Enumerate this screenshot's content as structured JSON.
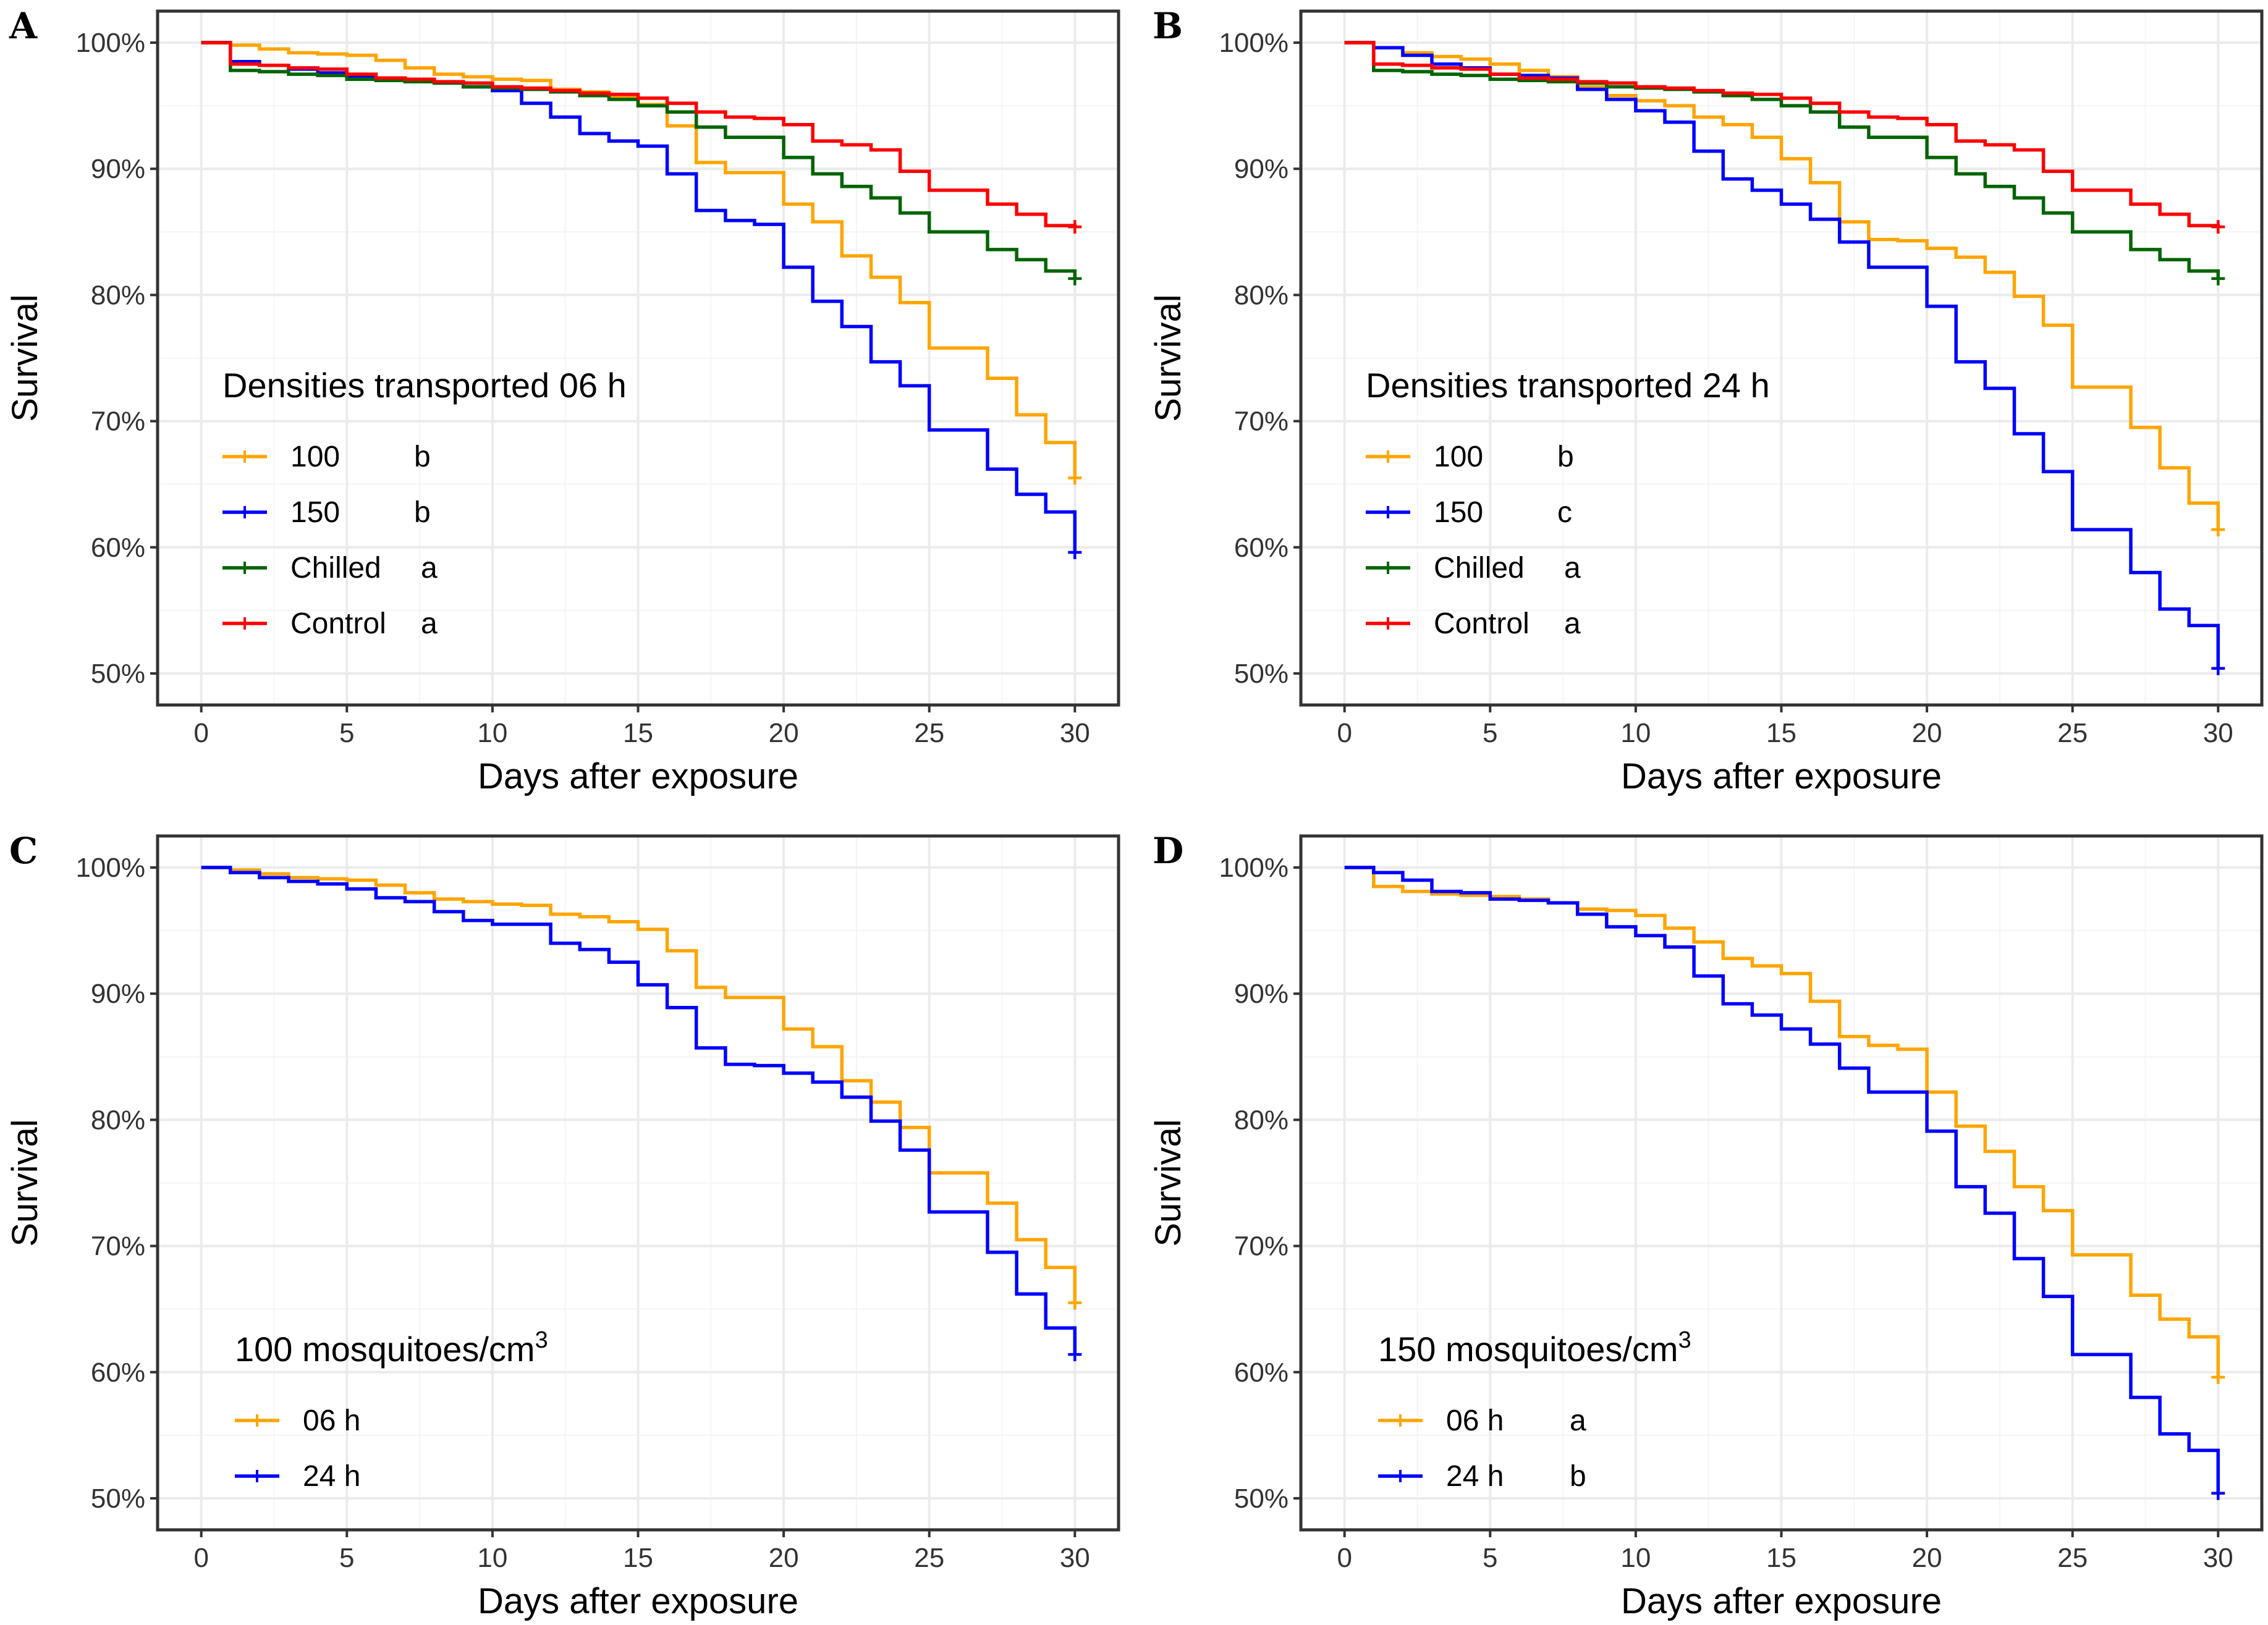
{
  "figure": {
    "colors": {
      "orange": "#FFA500",
      "blue": "#0000FF",
      "green": "#006400",
      "red": "#FF0000",
      "grid_major": "#EBEBEB",
      "grid_minor": "#F4F4F4",
      "frame": "#333333"
    }
  },
  "chart_data": [
    {
      "panel": "A",
      "type": "line",
      "step": true,
      "xlabel": "Days after exposure",
      "ylabel": "Survival",
      "xlim": [
        0,
        30
      ],
      "ylim": [
        50,
        100
      ],
      "xticks": [
        0,
        5,
        10,
        15,
        20,
        25,
        30
      ],
      "yticks": [
        50,
        60,
        70,
        80,
        90,
        100
      ],
      "ytick_labels": [
        "50%",
        "60%",
        "70%",
        "80%",
        "90%",
        "100%"
      ],
      "legend": {
        "title": "Densities transported 06 h",
        "position": "left-middle",
        "superscript": ""
      },
      "series": [
        {
          "name": "100",
          "letter": "b",
          "color": "#FFA500",
          "x": [
            0,
            1,
            2,
            3,
            4,
            5,
            6,
            7,
            8,
            9,
            10,
            11,
            12,
            13,
            14,
            15,
            16,
            17,
            18,
            19,
            20,
            21,
            22,
            23,
            24,
            25,
            26,
            27,
            28,
            29,
            30
          ],
          "y": [
            100,
            99.8,
            99.5,
            99.2,
            99.1,
            99.0,
            98.6,
            98.0,
            97.5,
            97.3,
            97.1,
            97.0,
            96.3,
            96.1,
            95.7,
            95.1,
            93.4,
            90.5,
            89.7,
            89.7,
            87.2,
            85.8,
            83.1,
            81.4,
            79.4,
            75.8,
            75.8,
            73.4,
            70.5,
            68.3,
            65.5
          ]
        },
        {
          "name": "150",
          "letter": "b",
          "color": "#0000FF",
          "x": [
            0,
            1,
            2,
            3,
            4,
            5,
            6,
            7,
            8,
            9,
            10,
            11,
            12,
            13,
            14,
            15,
            16,
            17,
            18,
            19,
            20,
            21,
            22,
            23,
            24,
            25,
            26,
            27,
            28,
            29,
            30
          ],
          "y": [
            100,
            98.5,
            98.2,
            97.9,
            97.6,
            97.3,
            97.2,
            97.0,
            96.8,
            96.5,
            96.2,
            95.2,
            94.1,
            92.8,
            92.2,
            91.8,
            89.6,
            86.7,
            85.9,
            85.6,
            82.2,
            79.5,
            77.5,
            74.7,
            72.8,
            69.3,
            69.3,
            66.2,
            64.2,
            62.8,
            59.6
          ]
        },
        {
          "name": "Chilled",
          "letter": "a",
          "color": "#006400",
          "x": [
            0,
            1,
            2,
            3,
            4,
            5,
            6,
            7,
            8,
            9,
            10,
            11,
            12,
            13,
            14,
            15,
            16,
            17,
            18,
            19,
            20,
            21,
            22,
            23,
            24,
            25,
            26,
            27,
            28,
            29,
            30
          ],
          "y": [
            100,
            97.8,
            97.7,
            97.5,
            97.4,
            97.1,
            97.0,
            96.9,
            96.8,
            96.5,
            96.4,
            96.3,
            96.1,
            95.8,
            95.5,
            95.0,
            94.5,
            93.3,
            92.5,
            92.5,
            90.9,
            89.6,
            88.6,
            87.7,
            86.5,
            85.0,
            85.0,
            83.6,
            82.8,
            81.9,
            81.3
          ]
        },
        {
          "name": "Control",
          "letter": "a",
          "color": "#FF0000",
          "x": [
            0,
            1,
            2,
            3,
            4,
            5,
            6,
            7,
            8,
            9,
            10,
            11,
            12,
            13,
            14,
            15,
            16,
            17,
            18,
            19,
            20,
            21,
            22,
            23,
            24,
            25,
            26,
            27,
            28,
            29,
            30
          ],
          "y": [
            100,
            98.3,
            98.2,
            98.0,
            97.9,
            97.5,
            97.2,
            97.1,
            96.9,
            96.8,
            96.5,
            96.4,
            96.2,
            96.0,
            95.9,
            95.6,
            95.2,
            94.5,
            94.1,
            94.0,
            93.5,
            92.2,
            91.9,
            91.5,
            89.8,
            88.3,
            88.3,
            87.2,
            86.4,
            85.5,
            85.4
          ]
        }
      ]
    },
    {
      "panel": "B",
      "type": "line",
      "step": true,
      "xlabel": "Days after exposure",
      "ylabel": "Survival",
      "xlim": [
        0,
        30
      ],
      "ylim": [
        50,
        100
      ],
      "xticks": [
        0,
        5,
        10,
        15,
        20,
        25,
        30
      ],
      "yticks": [
        50,
        60,
        70,
        80,
        90,
        100
      ],
      "ytick_labels": [
        "50%",
        "60%",
        "70%",
        "80%",
        "90%",
        "100%"
      ],
      "legend": {
        "title": "Densities transported 24 h",
        "position": "left-middle",
        "superscript": ""
      },
      "series": [
        {
          "name": "100",
          "letter": "b",
          "color": "#FFA500",
          "x": [
            0,
            1,
            2,
            3,
            4,
            5,
            6,
            7,
            8,
            9,
            10,
            11,
            12,
            13,
            14,
            15,
            16,
            17,
            18,
            19,
            20,
            21,
            22,
            23,
            24,
            25,
            26,
            27,
            28,
            29,
            30
          ],
          "y": [
            100,
            99.6,
            99.2,
            98.9,
            98.7,
            98.3,
            97.8,
            97.3,
            96.5,
            95.8,
            95.4,
            95.0,
            94.1,
            93.5,
            92.5,
            90.8,
            88.9,
            85.8,
            84.4,
            84.3,
            83.7,
            83.0,
            81.8,
            79.9,
            77.6,
            72.7,
            72.7,
            69.5,
            66.3,
            63.5,
            61.4
          ]
        },
        {
          "name": "150",
          "letter": "c",
          "color": "#0000FF",
          "x": [
            0,
            1,
            2,
            3,
            4,
            5,
            6,
            7,
            8,
            9,
            10,
            11,
            12,
            13,
            14,
            15,
            16,
            17,
            18,
            19,
            20,
            21,
            22,
            23,
            24,
            25,
            26,
            27,
            28,
            29,
            30
          ],
          "y": [
            100,
            99.6,
            99.0,
            98.3,
            98.0,
            97.5,
            97.4,
            97.2,
            96.3,
            95.5,
            94.6,
            93.7,
            91.4,
            89.2,
            88.3,
            87.2,
            86.0,
            84.2,
            82.2,
            82.2,
            79.1,
            74.7,
            72.6,
            69.0,
            66.0,
            61.4,
            61.4,
            58.0,
            55.1,
            53.8,
            50.4
          ]
        },
        {
          "name": "Chilled",
          "letter": "a",
          "color": "#006400",
          "x": [
            0,
            1,
            2,
            3,
            4,
            5,
            6,
            7,
            8,
            9,
            10,
            11,
            12,
            13,
            14,
            15,
            16,
            17,
            18,
            19,
            20,
            21,
            22,
            23,
            24,
            25,
            26,
            27,
            28,
            29,
            30
          ],
          "y": [
            100,
            97.8,
            97.7,
            97.5,
            97.4,
            97.1,
            97.0,
            96.9,
            96.8,
            96.5,
            96.4,
            96.3,
            96.1,
            95.8,
            95.5,
            95.0,
            94.5,
            93.3,
            92.5,
            92.5,
            90.9,
            89.6,
            88.6,
            87.7,
            86.5,
            85.0,
            85.0,
            83.6,
            82.8,
            81.9,
            81.3
          ]
        },
        {
          "name": "Control",
          "letter": "a",
          "color": "#FF0000",
          "x": [
            0,
            1,
            2,
            3,
            4,
            5,
            6,
            7,
            8,
            9,
            10,
            11,
            12,
            13,
            14,
            15,
            16,
            17,
            18,
            19,
            20,
            21,
            22,
            23,
            24,
            25,
            26,
            27,
            28,
            29,
            30
          ],
          "y": [
            100,
            98.3,
            98.2,
            98.0,
            97.9,
            97.5,
            97.2,
            97.1,
            96.9,
            96.8,
            96.5,
            96.4,
            96.2,
            96.0,
            95.9,
            95.6,
            95.2,
            94.5,
            94.1,
            94.0,
            93.5,
            92.2,
            91.9,
            91.5,
            89.8,
            88.3,
            88.3,
            87.2,
            86.4,
            85.5,
            85.4
          ]
        }
      ]
    },
    {
      "panel": "C",
      "type": "line",
      "step": true,
      "xlabel": "Days after exposure",
      "ylabel": "Survival",
      "xlim": [
        0,
        30
      ],
      "ylim": [
        50,
        100
      ],
      "xticks": [
        0,
        5,
        10,
        15,
        20,
        25,
        30
      ],
      "yticks": [
        50,
        60,
        70,
        80,
        90,
        100
      ],
      "ytick_labels": [
        "50%",
        "60%",
        "70%",
        "80%",
        "90%",
        "100%"
      ],
      "legend": {
        "title": "100 mosquitoes/cm",
        "position": "left-lower",
        "superscript": "3"
      },
      "series": [
        {
          "name": "06 h",
          "letter": "",
          "color": "#FFA500",
          "x": [
            0,
            1,
            2,
            3,
            4,
            5,
            6,
            7,
            8,
            9,
            10,
            11,
            12,
            13,
            14,
            15,
            16,
            17,
            18,
            19,
            20,
            21,
            22,
            23,
            24,
            25,
            26,
            27,
            28,
            29,
            30
          ],
          "y": [
            100,
            99.8,
            99.5,
            99.2,
            99.1,
            99.0,
            98.6,
            98.0,
            97.5,
            97.3,
            97.1,
            97.0,
            96.3,
            96.1,
            95.7,
            95.1,
            93.4,
            90.5,
            89.7,
            89.7,
            87.2,
            85.8,
            83.1,
            81.4,
            79.4,
            75.8,
            75.8,
            73.4,
            70.5,
            68.3,
            65.5
          ]
        },
        {
          "name": "24 h",
          "letter": "",
          "color": "#0000FF",
          "x": [
            0,
            1,
            2,
            3,
            4,
            5,
            6,
            7,
            8,
            9,
            10,
            11,
            12,
            13,
            14,
            15,
            16,
            17,
            18,
            19,
            20,
            21,
            22,
            23,
            24,
            25,
            26,
            27,
            28,
            29,
            30
          ],
          "y": [
            100,
            99.6,
            99.2,
            98.9,
            98.7,
            98.3,
            97.6,
            97.3,
            96.5,
            95.8,
            95.5,
            95.5,
            94.0,
            93.5,
            92.5,
            90.7,
            88.9,
            85.7,
            84.4,
            84.3,
            83.7,
            83.0,
            81.8,
            79.9,
            77.6,
            72.7,
            72.7,
            69.5,
            66.2,
            63.5,
            61.4
          ]
        }
      ]
    },
    {
      "panel": "D",
      "type": "line",
      "step": true,
      "xlabel": "Days after exposure",
      "ylabel": "Survival",
      "xlim": [
        0,
        30
      ],
      "ylim": [
        50,
        100
      ],
      "xticks": [
        0,
        5,
        10,
        15,
        20,
        25,
        30
      ],
      "yticks": [
        50,
        60,
        70,
        80,
        90,
        100
      ],
      "ytick_labels": [
        "50%",
        "60%",
        "70%",
        "80%",
        "90%",
        "100%"
      ],
      "legend": {
        "title": "150 mosquitoes/cm",
        "position": "left-lower",
        "superscript": "3"
      },
      "series": [
        {
          "name": "06 h",
          "letter": "a",
          "color": "#FFA500",
          "x": [
            0,
            1,
            2,
            3,
            4,
            5,
            6,
            7,
            8,
            9,
            10,
            11,
            12,
            13,
            14,
            15,
            16,
            17,
            18,
            19,
            20,
            21,
            22,
            23,
            24,
            25,
            26,
            27,
            28,
            29,
            30
          ],
          "y": [
            100,
            98.5,
            98.1,
            97.9,
            97.8,
            97.7,
            97.5,
            97.2,
            96.7,
            96.6,
            96.2,
            95.2,
            94.1,
            92.8,
            92.2,
            91.6,
            89.4,
            86.6,
            85.9,
            85.6,
            82.2,
            79.5,
            77.5,
            74.7,
            72.8,
            69.3,
            69.3,
            66.1,
            64.2,
            62.8,
            59.6
          ]
        },
        {
          "name": "24 h",
          "letter": "b",
          "color": "#0000FF",
          "x": [
            0,
            1,
            2,
            3,
            4,
            5,
            6,
            7,
            8,
            9,
            10,
            11,
            12,
            13,
            14,
            15,
            16,
            17,
            18,
            19,
            20,
            21,
            22,
            23,
            24,
            25,
            26,
            27,
            28,
            29,
            30
          ],
          "y": [
            100,
            99.6,
            99.0,
            98.1,
            98.0,
            97.5,
            97.4,
            97.2,
            96.3,
            95.3,
            94.6,
            93.7,
            91.4,
            89.2,
            88.3,
            87.2,
            86.0,
            84.1,
            82.2,
            82.2,
            79.1,
            74.7,
            72.6,
            69.0,
            66.0,
            61.4,
            61.4,
            58.0,
            55.1,
            53.8,
            50.4
          ]
        }
      ]
    }
  ]
}
